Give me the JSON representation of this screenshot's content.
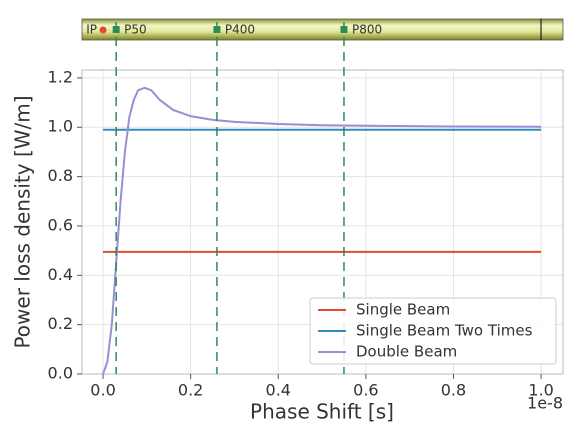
{
  "chart_data": {
    "type": "line",
    "xlabel": "Phase Shift [s]",
    "ylabel": "Power loss density [W/m]",
    "x_offset_label": "1e-8",
    "xlim": [
      -0.048,
      1.05
    ],
    "ylim": [
      0,
      1.232
    ],
    "xticks": [
      {
        "value": 0,
        "label": "0.0"
      },
      {
        "value": 0.2,
        "label": "0.2"
      },
      {
        "value": 0.4,
        "label": "0.4"
      },
      {
        "value": 0.6,
        "label": "0.6"
      },
      {
        "value": 0.8,
        "label": "0.8"
      },
      {
        "value": 1,
        "label": "1.0"
      }
    ],
    "yticks": [
      {
        "value": 0,
        "label": "0.0"
      },
      {
        "value": 0.2,
        "label": "0.2"
      },
      {
        "value": 0.4,
        "label": "0.4"
      },
      {
        "value": 0.6,
        "label": "0.6"
      },
      {
        "value": 0.8,
        "label": "0.8"
      },
      {
        "value": 1,
        "label": "1.0"
      },
      {
        "value": 1.2,
        "label": "1.2"
      }
    ],
    "grid": true,
    "legend": "lower right",
    "series": [
      {
        "name": "Single Beam",
        "color": "#e24a33",
        "x": [
          0,
          1
        ],
        "values": [
          0.495,
          0.495
        ]
      },
      {
        "name": "Single Beam Two Times",
        "color": "#348abd",
        "x": [
          0,
          1
        ],
        "values": [
          0.99,
          0.99
        ]
      },
      {
        "name": "Double Beam",
        "color": "#988ed5",
        "x": [
          0,
          0.01,
          0.02,
          0.03,
          0.04,
          0.05,
          0.06,
          0.07,
          0.08,
          0.095,
          0.11,
          0.13,
          0.16,
          0.2,
          0.25,
          0.3,
          0.4,
          0.5,
          0.6,
          0.8,
          1
        ],
        "values": [
          0,
          0.05,
          0.2,
          0.45,
          0.7,
          0.9,
          1.04,
          1.11,
          1.15,
          1.16,
          1.15,
          1.11,
          1.07,
          1.045,
          1.03,
          1.022,
          1.013,
          1.008,
          1.006,
          1.003,
          1.002
        ]
      }
    ],
    "beamline": {
      "ip": {
        "label": "IP",
        "x": 0,
        "color": "#e24a33"
      },
      "markers": [
        {
          "label": "P50",
          "x": 0.03
        },
        {
          "label": "P400",
          "x": 0.26
        },
        {
          "label": "P800",
          "x": 0.55
        }
      ],
      "marker_color": "#2e8b57"
    }
  }
}
